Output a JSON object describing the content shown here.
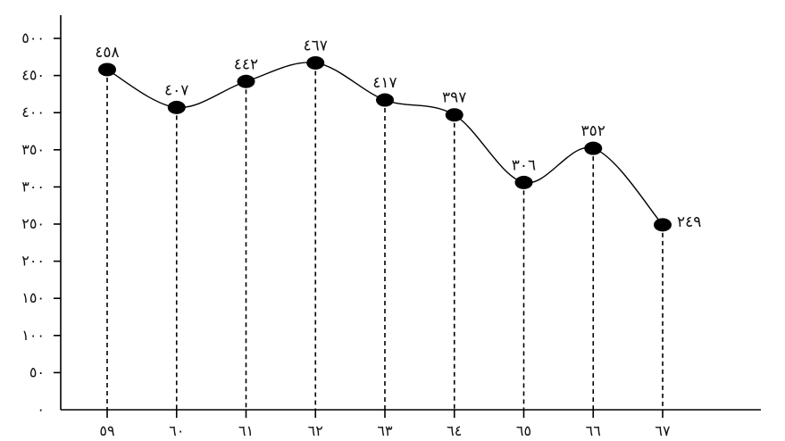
{
  "chart_data": {
    "type": "line",
    "title": "",
    "xlabel": "",
    "ylabel": "",
    "categories": [
      "٥٩",
      "٦٠",
      "٦١",
      "٦٢",
      "٦٣",
      "٦٤",
      "٦٥",
      "٦٦",
      "٦٧"
    ],
    "series": [
      {
        "values": [
          458,
          407,
          442,
          467,
          417,
          397,
          306,
          352,
          249
        ],
        "labels": [
          "٤٥٨",
          "٤٠٧",
          "٤٤٢",
          "٤٦٧",
          "٤١٧",
          "٣٩٧",
          "٣٠٦",
          "٣٥٢",
          "٢٤٩"
        ]
      }
    ],
    "y_ticks": [
      {
        "value": 0,
        "label": "٠"
      },
      {
        "value": 50,
        "label": "٥٠"
      },
      {
        "value": 100,
        "label": "١٠٠"
      },
      {
        "value": 150,
        "label": "١٥٠"
      },
      {
        "value": 200,
        "label": "٢٠٠"
      },
      {
        "value": 250,
        "label": "٢٥٠"
      },
      {
        "value": 300,
        "label": "٣٠٠"
      },
      {
        "value": 350,
        "label": "٣٥٠"
      },
      {
        "value": 400,
        "label": "٤٠٠"
      },
      {
        "value": 450,
        "label": "٤٥٠"
      },
      {
        "value": 500,
        "label": "٥٠٠"
      }
    ],
    "ylim": [
      0,
      500
    ],
    "grid": false,
    "legend": "none",
    "drop_lines": true,
    "curve": "smooth",
    "colors": {
      "line": "#000000",
      "marker": "#000000"
    }
  }
}
